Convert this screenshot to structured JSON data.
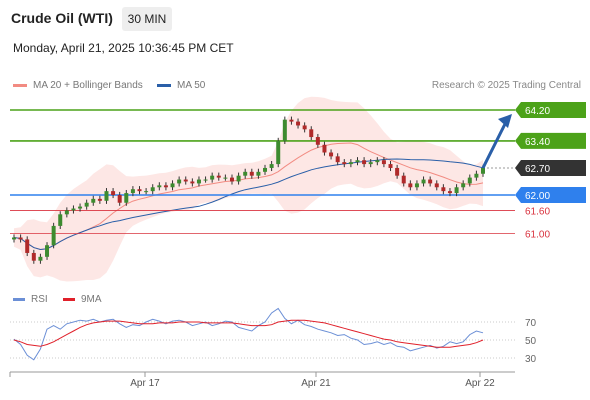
{
  "header": {
    "title": "Crude Oil (WTI)",
    "interval": "30 MIN",
    "datetime": "Monday, April 21, 2025 10:36:45 PM CET"
  },
  "legend": {
    "item1": {
      "label": "MA 20 + Bollinger Bands",
      "color": "#f28b82"
    },
    "item2": {
      "label": "MA 50",
      "color": "#2a5fa8"
    },
    "credit": "Research © 2025 Trading Central"
  },
  "levels": [
    {
      "label": "64.20",
      "value": 64.2,
      "color": "#4ca219",
      "style": "tag-fill"
    },
    {
      "label": "63.40",
      "value": 63.4,
      "color": "#4ca219",
      "style": "tag-fill"
    },
    {
      "label": "62.70",
      "value": 62.7,
      "color": "#333333",
      "style": "tag-fill"
    },
    {
      "label": "62.00",
      "value": 62.0,
      "color": "#2f80ed",
      "style": "tag-fill"
    },
    {
      "label": "61.60",
      "value": 61.6,
      "color": "#d9333f",
      "style": "text"
    },
    {
      "label": "61.00",
      "value": 61.0,
      "color": "#d9333f",
      "style": "text"
    }
  ],
  "xaxis": {
    "ticks": [
      "Apr 17",
      "Apr 21",
      "Apr 22"
    ]
  },
  "rsi": {
    "legend": {
      "rsi_label": "RSI",
      "rsi_color": "#6b8fd6",
      "ma_label": "9MA",
      "ma_color": "#e0202a"
    },
    "levels": [
      "70",
      "50",
      "30"
    ]
  },
  "chart_data": {
    "type": "candlestick",
    "price_range": [
      60.2,
      64.6
    ],
    "ohlc_close": [
      60.9,
      60.85,
      60.5,
      60.3,
      60.4,
      60.7,
      61.2,
      61.5,
      61.6,
      61.65,
      61.7,
      61.8,
      61.9,
      61.85,
      62.1,
      62.0,
      61.8,
      62.05,
      62.15,
      62.1,
      62.1,
      62.2,
      62.25,
      62.2,
      62.3,
      62.4,
      62.35,
      62.3,
      62.4,
      62.4,
      62.5,
      62.45,
      62.45,
      62.35,
      62.5,
      62.6,
      62.5,
      62.6,
      62.7,
      62.8,
      63.4,
      63.95,
      63.9,
      63.8,
      63.7,
      63.5,
      63.3,
      63.1,
      63.0,
      62.85,
      62.8,
      62.85,
      62.9,
      62.8,
      62.85,
      62.9,
      62.8,
      62.7,
      62.5,
      62.3,
      62.2,
      62.3,
      62.4,
      62.3,
      62.2,
      62.1,
      62.05,
      62.2,
      62.3,
      62.45,
      62.55,
      62.7
    ],
    "rsi": [
      51,
      45,
      33,
      28,
      40,
      62,
      66,
      62,
      68,
      70,
      72,
      71,
      73,
      70,
      72,
      73,
      68,
      64,
      67,
      66,
      70,
      73,
      71,
      68,
      71,
      72,
      70,
      66,
      68,
      70,
      66,
      68,
      71,
      70,
      64,
      62,
      60,
      66,
      70,
      80,
      85,
      74,
      68,
      72,
      67,
      65,
      62,
      60,
      58,
      55,
      56,
      52,
      50,
      45,
      46,
      48,
      45,
      47,
      43,
      42,
      38,
      40,
      42,
      44,
      41,
      43,
      48,
      46,
      48,
      56,
      60,
      58
    ],
    "rsi_ma": [
      50,
      48,
      45,
      44,
      43,
      45,
      48,
      52,
      56,
      60,
      64,
      67,
      69,
      70,
      71,
      71,
      71,
      70,
      69,
      68,
      68,
      68,
      69,
      69,
      69,
      70,
      70,
      70,
      70,
      69,
      69,
      69,
      69,
      69,
      68,
      67,
      66,
      66,
      66,
      67,
      70,
      71,
      72,
      72,
      72,
      71,
      70,
      69,
      67,
      65,
      63,
      61,
      59,
      57,
      55,
      53,
      51,
      50,
      48,
      47,
      46,
      45,
      44,
      43,
      42,
      42,
      42,
      43,
      44,
      45,
      47,
      50
    ]
  }
}
